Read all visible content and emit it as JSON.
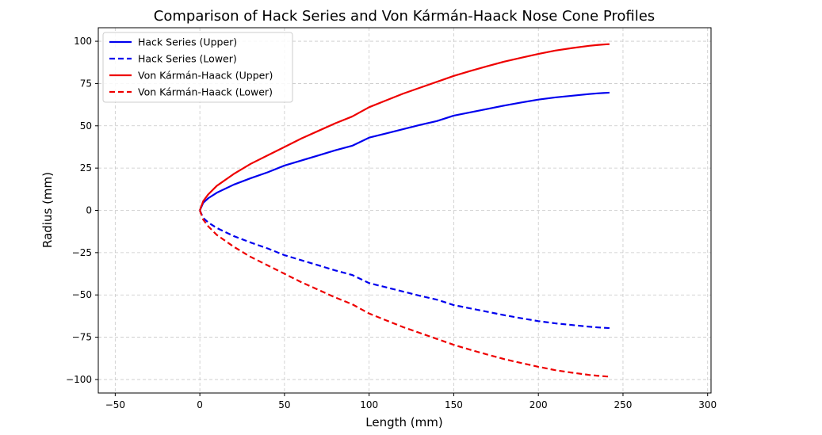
{
  "chart_data": {
    "type": "line",
    "title": "Comparison of Hack Series and Von Kármán-Haack Nose Cone Profiles",
    "xlabel": "Length (mm)",
    "ylabel": "Radius (mm)",
    "xlim": [
      -60,
      302
    ],
    "ylim": [
      -108,
      108
    ],
    "xticks": [
      -50,
      0,
      50,
      100,
      150,
      200,
      250,
      300
    ],
    "yticks": [
      -100,
      -75,
      -50,
      -25,
      0,
      25,
      50,
      75,
      100
    ],
    "grid": true,
    "legend_position": "top-left",
    "x": [
      0,
      2,
      5,
      10,
      20,
      30,
      40,
      50,
      60,
      70,
      80,
      90,
      100,
      110,
      120,
      130,
      140,
      150,
      160,
      170,
      180,
      190,
      200,
      210,
      220,
      230,
      235,
      240,
      242
    ],
    "series": [
      {
        "name": "Hack Series (Upper)",
        "color": "#0000ee",
        "dash": "solid",
        "values": [
          0,
          4.5,
          7.2,
          10.4,
          15.2,
          19.0,
          22.5,
          26.5,
          29.5,
          32.5,
          35.5,
          38.2,
          43.0,
          45.5,
          48.0,
          50.5,
          52.8,
          56.0,
          58.0,
          60.0,
          62.0,
          63.8,
          65.5,
          66.8,
          67.8,
          68.8,
          69.2,
          69.5,
          69.6
        ]
      },
      {
        "name": "Hack Series (Lower)",
        "color": "#0000ee",
        "dash": "dashed",
        "values": [
          0,
          -4.5,
          -7.2,
          -10.4,
          -15.2,
          -19.0,
          -22.5,
          -26.5,
          -29.5,
          -32.5,
          -35.5,
          -38.2,
          -43.0,
          -45.5,
          -48.0,
          -50.5,
          -52.8,
          -56.0,
          -58.0,
          -60.0,
          -62.0,
          -63.8,
          -65.5,
          -66.8,
          -67.8,
          -68.8,
          -69.2,
          -69.5,
          -69.6
        ]
      },
      {
        "name": "Von Kármán-Haack (Upper)",
        "color": "#ee0000",
        "dash": "solid",
        "values": [
          0,
          5.5,
          9.5,
          14.5,
          21.5,
          27.5,
          32.5,
          37.5,
          42.5,
          47.0,
          51.5,
          55.5,
          61.0,
          65.0,
          69.0,
          72.5,
          76.0,
          79.5,
          82.5,
          85.3,
          88.0,
          90.3,
          92.5,
          94.5,
          96.0,
          97.3,
          97.8,
          98.2,
          98.3
        ]
      },
      {
        "name": "Von Kármán-Haack (Lower)",
        "color": "#ee0000",
        "dash": "dashed",
        "values": [
          0,
          -5.5,
          -9.5,
          -14.5,
          -21.5,
          -27.5,
          -32.5,
          -37.5,
          -42.5,
          -47.0,
          -51.5,
          -55.5,
          -61.0,
          -65.0,
          -69.0,
          -72.5,
          -76.0,
          -79.5,
          -82.5,
          -85.3,
          -88.0,
          -90.3,
          -92.5,
          -94.5,
          -96.0,
          -97.3,
          -97.8,
          -98.2,
          -98.3
        ]
      }
    ]
  }
}
